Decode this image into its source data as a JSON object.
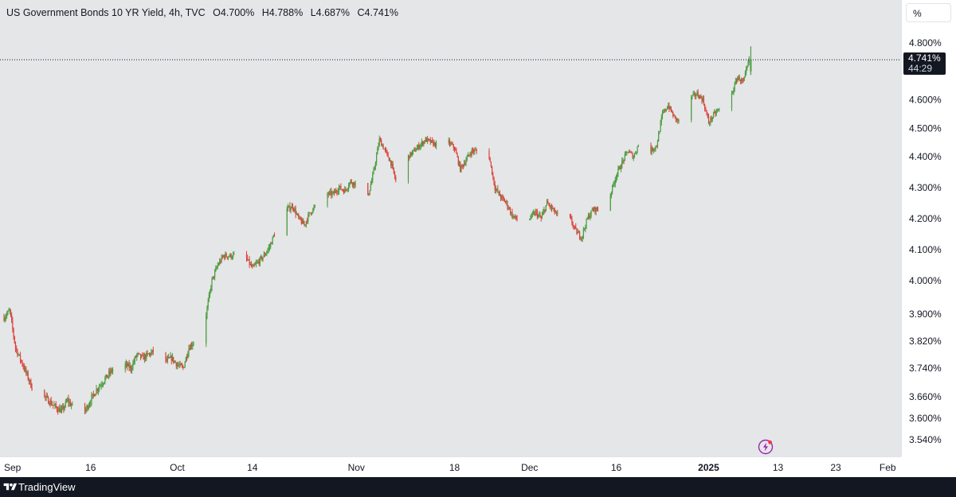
{
  "legend": {
    "symbol": "US Government Bonds 10 YR Yield, 4h, TVC",
    "open": "O4.700%",
    "high": "H4.788%",
    "low": "L4.687%",
    "close": "C4.741%"
  },
  "unit_label": "%",
  "price_tag": {
    "price": "4.741%",
    "countdown": "44:29"
  },
  "brand": {
    "name": "TradingView"
  },
  "colors": {
    "up": "#4a9c3f",
    "down": "#e0413a",
    "plot_bg": "#e5e6e8",
    "dark": "#131722"
  },
  "icons": {
    "logo": "tradingview-logo-icon",
    "alert": "lightning-bolt-icon"
  },
  "chart_data": {
    "type": "candlestick",
    "grid": false,
    "y_axis": {
      "ticks": [
        "4.800%",
        "4.700%",
        "4.600%",
        "4.500%",
        "4.400%",
        "4.300%",
        "4.200%",
        "4.100%",
        "4.000%",
        "3.900%",
        "3.820%",
        "3.740%",
        "3.660%",
        "3.600%",
        "3.540%"
      ],
      "tick_values": [
        4.8,
        4.7,
        4.6,
        4.5,
        4.4,
        4.3,
        4.2,
        4.1,
        4.0,
        3.9,
        3.82,
        3.74,
        3.66,
        3.6,
        3.54
      ]
    },
    "x_axis": {
      "ticks": [
        {
          "label": "Sep",
          "day": 0,
          "bold": false
        },
        {
          "label": "16",
          "day": 15,
          "bold": false
        },
        {
          "label": "Oct",
          "day": 30,
          "bold": false
        },
        {
          "label": "14",
          "day": 43,
          "bold": false
        },
        {
          "label": "Nov",
          "day": 61,
          "bold": false
        },
        {
          "label": "18",
          "day": 78,
          "bold": false
        },
        {
          "label": "Dec",
          "day": 91,
          "bold": false
        },
        {
          "label": "16",
          "day": 106,
          "bold": false
        },
        {
          "label": "2025",
          "day": 122,
          "bold": true
        },
        {
          "label": "13",
          "day": 134,
          "bold": false
        },
        {
          "label": "23",
          "day": 144,
          "bold": false
        },
        {
          "label": "Feb",
          "day": 153,
          "bold": false
        }
      ],
      "day_range": [
        0,
        155
      ]
    },
    "last_price": 4.741,
    "path_days": [
      0,
      1,
      2,
      3,
      4,
      5,
      6,
      7,
      9,
      10,
      11,
      12,
      14,
      15,
      16,
      18,
      20,
      22,
      23,
      24,
      25,
      27,
      28,
      29,
      30,
      31,
      32,
      33,
      34,
      35,
      36,
      37,
      38,
      40,
      41,
      42,
      43,
      45,
      46,
      47,
      48,
      50,
      51,
      52,
      53,
      55,
      56,
      57,
      58,
      59,
      60,
      62,
      63,
      64,
      65,
      66,
      67,
      68,
      69,
      70,
      71,
      73,
      74,
      75,
      76,
      77,
      78,
      79,
      80,
      81,
      83,
      84,
      85,
      86,
      87,
      88,
      90,
      91,
      92,
      93,
      94,
      95,
      97,
      98,
      99,
      100,
      101,
      102,
      104,
      105,
      106,
      107,
      108,
      109,
      110,
      112,
      113,
      114,
      115,
      116,
      117,
      119,
      120,
      121,
      122,
      123,
      124,
      125,
      126,
      127,
      128,
      129
    ],
    "path_values": [
      3.89,
      3.91,
      3.8,
      3.76,
      3.72,
      3.68,
      3.64,
      3.66,
      3.63,
      3.62,
      3.65,
      3.63,
      3.62,
      3.65,
      3.68,
      3.72,
      3.76,
      3.74,
      3.78,
      3.77,
      3.78,
      3.8,
      3.76,
      3.77,
      3.75,
      3.74,
      3.8,
      3.82,
      3.84,
      3.9,
      4.0,
      4.05,
      4.08,
      4.08,
      4.12,
      4.07,
      4.04,
      4.08,
      4.11,
      4.16,
      4.22,
      4.24,
      4.2,
      4.18,
      4.22,
      4.26,
      4.28,
      4.28,
      4.3,
      4.29,
      4.32,
      4.3,
      4.27,
      4.35,
      4.46,
      4.42,
      4.38,
      4.31,
      4.34,
      4.4,
      4.42,
      4.46,
      4.45,
      4.44,
      4.42,
      4.45,
      4.43,
      4.36,
      4.39,
      4.42,
      4.42,
      4.4,
      4.3,
      4.27,
      4.25,
      4.21,
      4.18,
      4.2,
      4.22,
      4.2,
      4.25,
      4.23,
      4.18,
      4.2,
      4.16,
      4.14,
      4.2,
      4.23,
      4.23,
      4.28,
      4.34,
      4.38,
      4.42,
      4.4,
      4.45,
      4.42,
      4.44,
      4.55,
      4.58,
      4.54,
      4.52,
      4.61,
      4.62,
      4.6,
      4.52,
      4.55,
      4.57,
      4.6,
      4.62,
      4.68,
      4.66,
      4.74
    ]
  }
}
